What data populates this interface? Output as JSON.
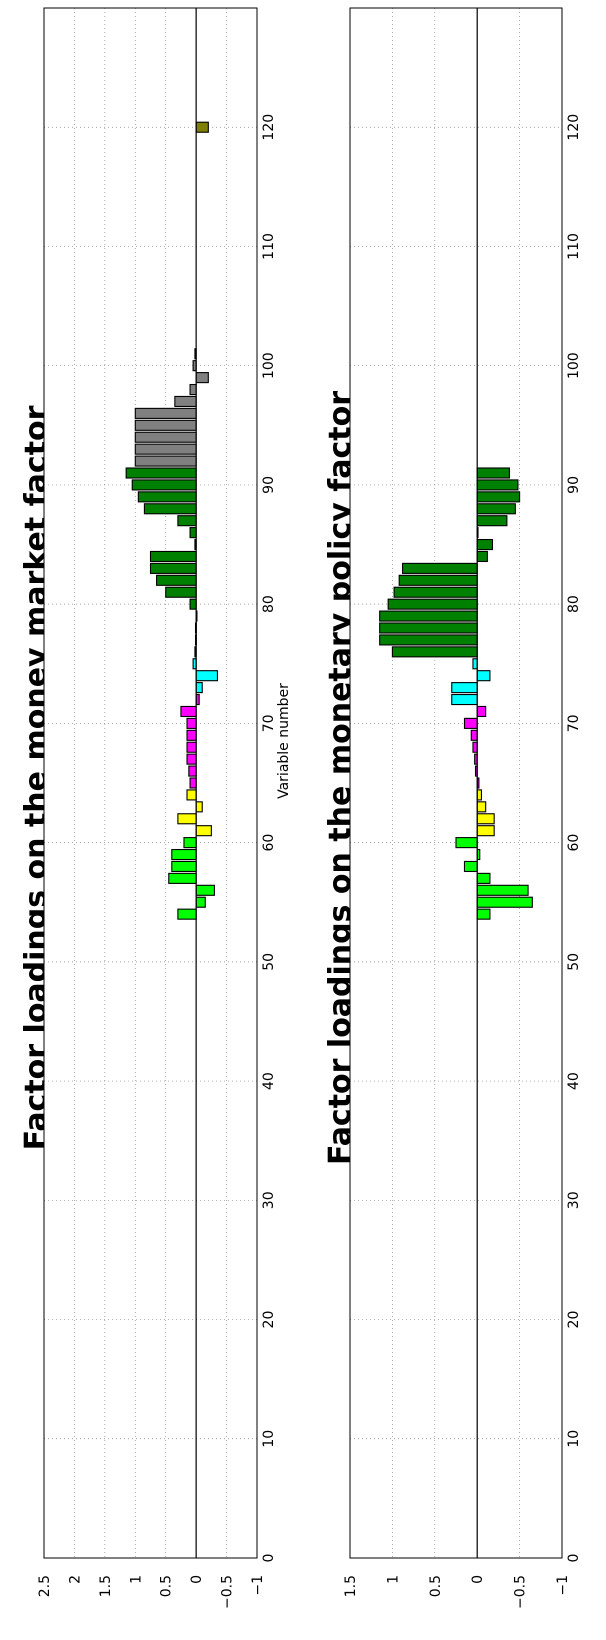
{
  "chart_data": [
    {
      "type": "bar",
      "title": "Factor loadings on the money market factor",
      "xlabel": "Variable number",
      "ylabel": "",
      "xlim": [
        0,
        130
      ],
      "ylim": [
        -1,
        2.5
      ],
      "xticks": [
        0,
        10,
        20,
        30,
        40,
        50,
        60,
        70,
        80,
        90,
        100,
        110,
        120
      ],
      "yticks": [
        -1,
        -0.5,
        0,
        0.5,
        1,
        1.5,
        2,
        2.5
      ],
      "ytick_labels": [
        "−1",
        "−0.5",
        "0",
        "0.5",
        "1",
        "1.5",
        "2",
        "2.5"
      ],
      "grid": true,
      "colors": {
        "lime": "#00ff00",
        "yellow": "#ffff00",
        "magenta": "#ff00ff",
        "cyan": "#00ffff",
        "darkgreen": "#008000",
        "gray": "#808080",
        "olive": "#808000"
      },
      "x": [
        54,
        55,
        56,
        57,
        58,
        59,
        60,
        61,
        62,
        63,
        64,
        65,
        66,
        67,
        68,
        69,
        70,
        71,
        72,
        73,
        74,
        75,
        76,
        77,
        78,
        79,
        80,
        81,
        82,
        83,
        84,
        85,
        86,
        87,
        88,
        89,
        90,
        91,
        92,
        93,
        94,
        95,
        96,
        97,
        98,
        99,
        100,
        101,
        120
      ],
      "values": [
        0.3,
        -0.15,
        -0.3,
        0.45,
        0.4,
        0.4,
        0.2,
        -0.25,
        0.3,
        -0.1,
        0.15,
        0.1,
        0.12,
        0.15,
        0.15,
        0.15,
        0.15,
        0.25,
        -0.05,
        -0.1,
        -0.35,
        0.05,
        0.02,
        0.01,
        0.01,
        0.0,
        0.1,
        0.5,
        0.65,
        0.75,
        0.75,
        0.02,
        0.1,
        0.3,
        0.85,
        0.95,
        1.05,
        1.15,
        1.0,
        1.0,
        1.0,
        1.0,
        1.0,
        0.35,
        0.1,
        -0.2,
        0.05,
        0.02,
        -0.2
      ],
      "colors_per_bar": [
        "lime",
        "lime",
        "lime",
        "lime",
        "lime",
        "lime",
        "lime",
        "yellow",
        "yellow",
        "yellow",
        "yellow",
        "magenta",
        "magenta",
        "magenta",
        "magenta",
        "magenta",
        "magenta",
        "magenta",
        "magenta",
        "cyan",
        "cyan",
        "cyan",
        "cyan",
        "cyan",
        "darkgreen",
        "darkgreen",
        "darkgreen",
        "darkgreen",
        "darkgreen",
        "darkgreen",
        "darkgreen",
        "darkgreen",
        "darkgreen",
        "darkgreen",
        "darkgreen",
        "darkgreen",
        "darkgreen",
        "darkgreen",
        "gray",
        "gray",
        "gray",
        "gray",
        "gray",
        "gray",
        "gray",
        "gray",
        "gray",
        "gray",
        "olive"
      ]
    },
    {
      "type": "bar",
      "title": "Factor loadings on the monetary policy factor",
      "xlabel": "",
      "ylabel": "",
      "xlim": [
        0,
        130
      ],
      "ylim": [
        -1,
        1.5
      ],
      "xticks": [
        0,
        10,
        20,
        30,
        40,
        50,
        60,
        70,
        80,
        90,
        100,
        110,
        120
      ],
      "yticks": [
        -1,
        -0.5,
        0,
        0.5,
        1,
        1.5
      ],
      "ytick_labels": [
        "−1",
        "−0.5",
        "0",
        "0.5",
        "1",
        "1.5"
      ],
      "grid": true,
      "colors": {
        "lime": "#00ff00",
        "yellow": "#ffff00",
        "magenta": "#ff00ff",
        "cyan": "#00ffff",
        "darkgreen": "#008000"
      },
      "x": [
        54,
        55,
        56,
        57,
        58,
        59,
        60,
        61,
        62,
        63,
        64,
        65,
        66,
        67,
        68,
        69,
        70,
        71,
        72,
        73,
        74,
        75,
        76,
        77,
        78,
        79,
        80,
        81,
        82,
        83,
        84,
        85,
        86,
        87,
        88,
        89,
        90,
        91
      ],
      "values": [
        -0.15,
        -0.65,
        -0.6,
        -0.15,
        0.15,
        -0.03,
        0.25,
        -0.2,
        -0.2,
        -0.1,
        -0.05,
        -0.02,
        0.02,
        0.03,
        0.05,
        0.07,
        0.15,
        -0.1,
        0.3,
        0.3,
        -0.15,
        0.05,
        1.0,
        1.15,
        1.15,
        1.15,
        1.05,
        0.98,
        0.92,
        0.88,
        -0.12,
        -0.18,
        0.0,
        -0.35,
        -0.45,
        -0.5,
        -0.48,
        -0.38
      ],
      "colors_per_bar": [
        "lime",
        "lime",
        "lime",
        "lime",
        "lime",
        "lime",
        "lime",
        "yellow",
        "yellow",
        "yellow",
        "yellow",
        "magenta",
        "magenta",
        "magenta",
        "magenta",
        "magenta",
        "magenta",
        "magenta",
        "cyan",
        "cyan",
        "cyan",
        "cyan",
        "darkgreen",
        "darkgreen",
        "darkgreen",
        "darkgreen",
        "darkgreen",
        "darkgreen",
        "darkgreen",
        "darkgreen",
        "darkgreen",
        "darkgreen",
        "darkgreen",
        "darkgreen",
        "darkgreen",
        "darkgreen",
        "darkgreen",
        "darkgreen"
      ]
    }
  ]
}
